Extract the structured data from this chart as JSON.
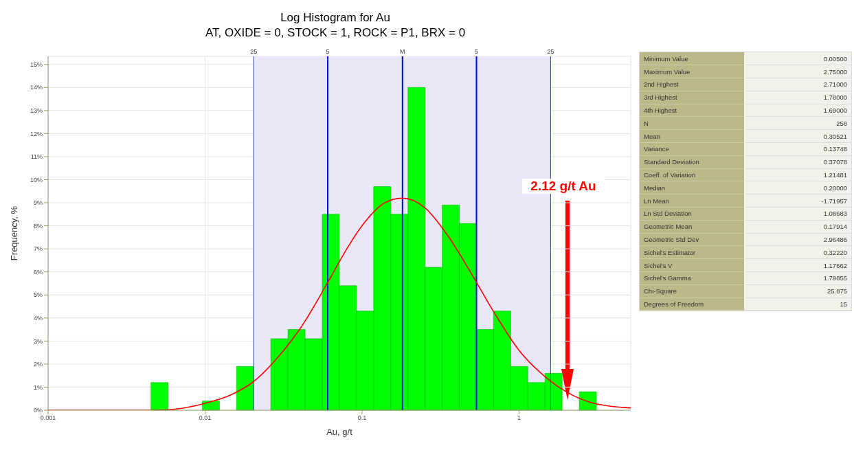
{
  "chart_data": [
    {
      "type": "histogram",
      "title": "Log Histogram for Au",
      "subtitle": "AT, OXIDE = 0, STOCK = 1, ROCK = P1, BRX = 0",
      "xlabel": "Au, g/t",
      "ylabel": "Frequency, %",
      "bins": [
        0.00452,
        0.00581,
        0.00747,
        0.0096,
        0.01235,
        0.01588,
        0.02042,
        0.02625,
        0.03375,
        0.0434,
        0.0558,
        0.07175,
        0.09226,
        0.1186,
        0.1525,
        0.1961,
        0.2522,
        0.3242,
        0.4169,
        0.536,
        0.6892,
        0.8862,
        1.139,
        1.465,
        1.884,
        2.422,
        3.114
      ],
      "values": [
        1.2,
        0,
        0,
        0.4,
        0,
        1.9,
        0,
        3.1,
        3.5,
        3.1,
        8.5,
        5.4,
        4.3,
        9.7,
        8.5,
        14.0,
        6.2,
        8.9,
        8.1,
        3.5,
        4.3,
        1.9,
        1.2,
        1.6,
        0,
        0.8
      ],
      "color": "#00ff00",
      "series": [
        {
          "type": "line",
          "color": "#ff0000",
          "x": [
            0.001,
            0.003,
            0.005,
            0.01,
            0.015,
            0.02,
            0.03,
            0.04,
            0.06,
            0.08,
            0.1,
            0.14,
            0.18,
            0.25,
            0.35,
            0.5,
            0.7,
            1,
            1.5,
            2,
            3,
            5.15
          ],
          "values": [
            0,
            0,
            0,
            0.3,
            0.7,
            1.2,
            2.4,
            3.5,
            5.5,
            7.0,
            8.0,
            9.0,
            9.2,
            8.8,
            7.6,
            5.9,
            4.2,
            2.6,
            1.4,
            0.8,
            0.3,
            0.1
          ]
        }
      ],
      "log": "x",
      "xlim": [
        0.001,
        5.15
      ],
      "xticks": [
        0.001,
        0.01,
        0.1,
        1
      ],
      "ylim": [
        0,
        15.35
      ],
      "yticks": [
        {
          "value": 0,
          "label": "0%"
        },
        {
          "value": 1,
          "label": "1%"
        },
        {
          "value": 2,
          "label": "2%"
        },
        {
          "value": 3,
          "label": "3%"
        },
        {
          "value": 4,
          "label": "4%"
        },
        {
          "value": 5,
          "label": "5%"
        },
        {
          "value": 6,
          "label": "6%"
        },
        {
          "value": 7,
          "label": "7%"
        },
        {
          "value": 8,
          "label": "8%"
        },
        {
          "value": 9,
          "label": "9%"
        },
        {
          "value": 10,
          "label": "10%"
        },
        {
          "value": 11,
          "label": "11%"
        },
        {
          "value": 12,
          "label": "12%"
        },
        {
          "value": 13,
          "label": "13%"
        },
        {
          "value": 14,
          "label": "14%"
        },
        {
          "value": 15,
          "label": "15%"
        }
      ],
      "grid": true,
      "bands": [
        {
          "axis": "x",
          "from": 0.0204,
          "to": 1.59,
          "color": "#e8e8f8"
        }
      ],
      "ref_lines": [
        {
          "axis": "x",
          "value": 0.0204,
          "color": "#3333ff"
        },
        {
          "axis": "x",
          "value": 0.0605,
          "color": "#0000ff"
        },
        {
          "axis": "x",
          "value": 0.181,
          "color": "#0000ff"
        },
        {
          "axis": "x",
          "value": 0.536,
          "color": "#0000ff"
        },
        {
          "axis": "x",
          "value": 1.59,
          "color": "#3333ff"
        }
      ],
      "annotations": [
        "2.12 g/t Au",
        "25",
        "5",
        "M",
        "5",
        "25"
      ]
    },
    {
      "type": "other",
      "categories": [
        "Minimum Value",
        "Maximum Value",
        "2nd Highest",
        "3rd Highest",
        "4th Highest",
        "N",
        "Mean",
        "Variance",
        "Standard Deviation",
        "Coeff. of Variation",
        "Median",
        "Ln Mean",
        "Ln Std Deviation",
        "Geometric Mean",
        "Geometric Std Dev",
        "Sichel's Estimator",
        "Sichel's V",
        "Sichel's Gamma",
        "Chi-Square",
        "Degrees of Freedom"
      ],
      "value_labels": [
        "0.00500",
        "2.75000",
        "2.71000",
        "1.78000",
        "1.69000",
        "258",
        "0.30521",
        "0.13748",
        "0.37078",
        "1.21481",
        "0.20000",
        "-1.71957",
        "1.08683",
        "0.17914",
        "2.96486",
        "0.32220",
        "1.17662",
        "1.79855",
        "25.875",
        "15"
      ]
    }
  ]
}
